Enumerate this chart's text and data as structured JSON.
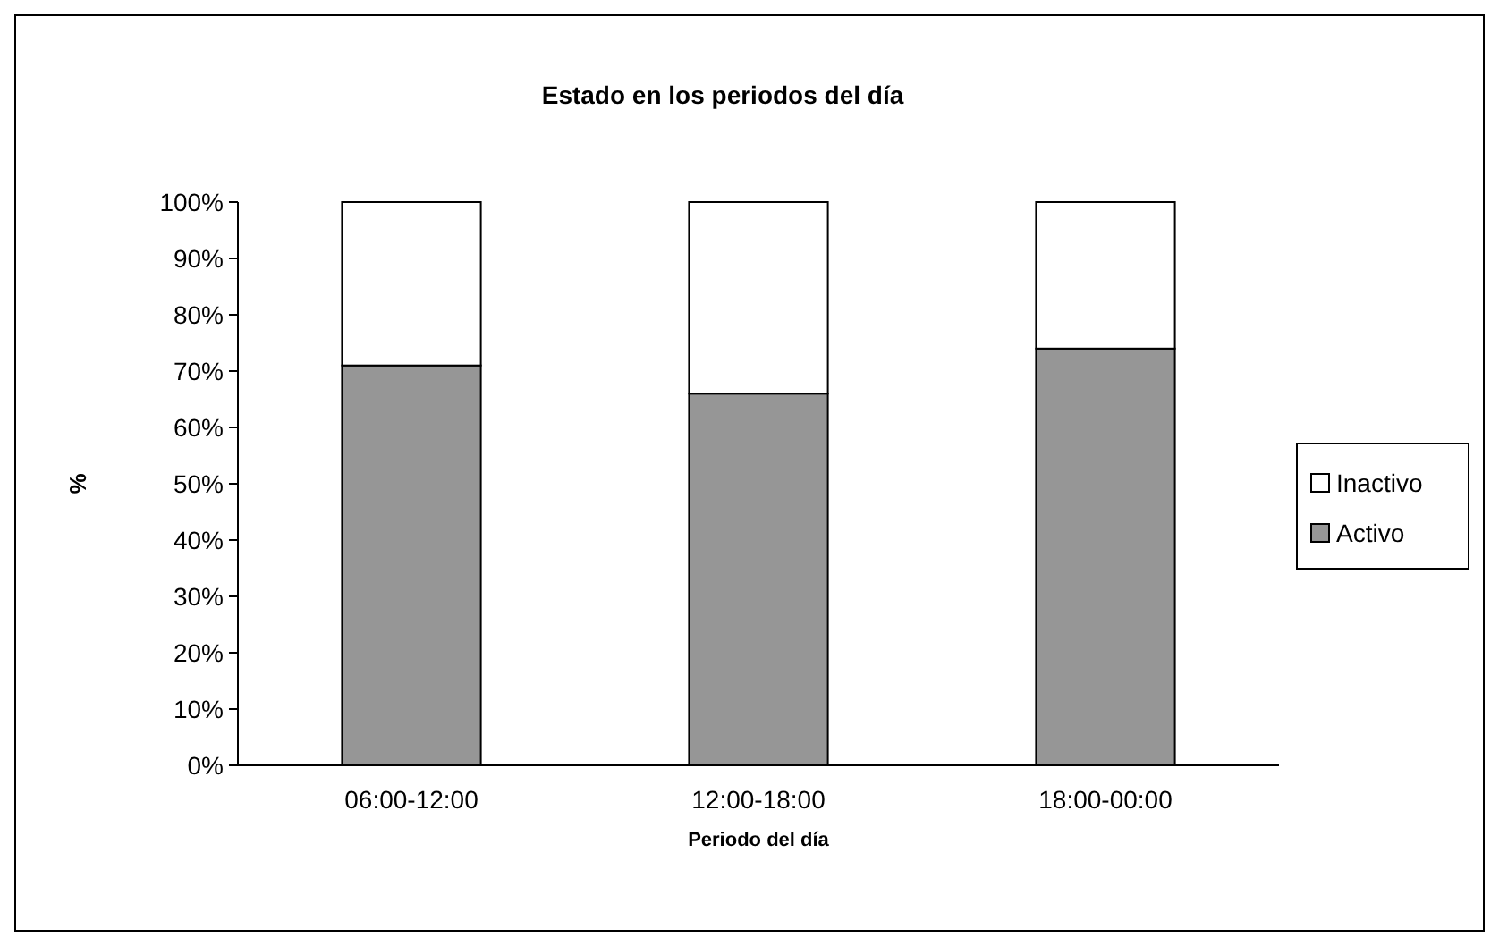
{
  "chart_data": {
    "type": "bar",
    "title": "Estado en los periodos del día",
    "xlabel": "Periodo del día",
    "ylabel": "%",
    "categories": [
      "06:00-12:00",
      "12:00-18:00",
      "18:00-00:00"
    ],
    "stacked": true,
    "series": [
      {
        "name": "Activo",
        "color": "#969696",
        "values": [
          71,
          66,
          74
        ]
      },
      {
        "name": "Inactivo",
        "color": "#ffffff",
        "values": [
          29,
          34,
          26
        ]
      }
    ],
    "ylim": [
      0,
      100
    ],
    "yticks": [
      {
        "value": 0,
        "label": "0%"
      },
      {
        "value": 10,
        "label": "10%"
      },
      {
        "value": 20,
        "label": "20%"
      },
      {
        "value": 30,
        "label": "30%"
      },
      {
        "value": 40,
        "label": "40%"
      },
      {
        "value": 50,
        "label": "50%"
      },
      {
        "value": 60,
        "label": "60%"
      },
      {
        "value": 70,
        "label": "70%"
      },
      {
        "value": 80,
        "label": "80%"
      },
      {
        "value": 90,
        "label": "90%"
      },
      {
        "value": 100,
        "label": "100%"
      }
    ],
    "legend": "right",
    "grid": false
  }
}
